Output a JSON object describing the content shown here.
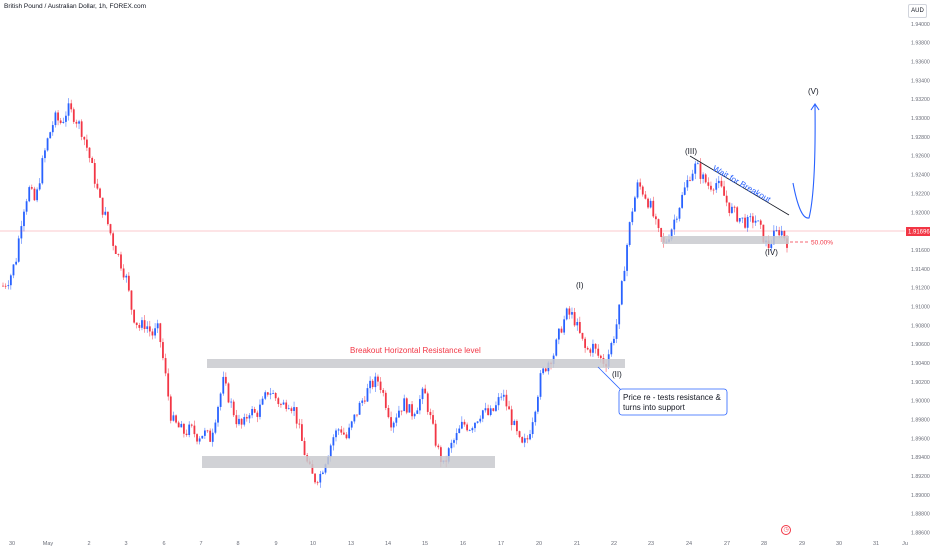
{
  "header": {
    "symbol_title": "British Pound / Australian Dollar, 1h, FOREX.com",
    "currency": "AUD"
  },
  "icons": {
    "time_icon": "clock-icon"
  },
  "colors": {
    "bull": "#2962ff",
    "bear": "#f23645",
    "zone": "#c9cacf",
    "wave_text": "#131722",
    "accent_blue": "#2962ff",
    "accent_red": "#f23645"
  },
  "annotations": {
    "resistance_label": "Breakout Horizontal Resistance level",
    "retest_label_line1": "Price re - tests resistance &",
    "retest_label_line2": "turns into support",
    "wait_label": "Wait for Breakout",
    "fib_label": "50.00%",
    "wave_i": "(I)",
    "wave_ii": "(II)",
    "wave_iii": "(III)",
    "wave_iv": "(IV)",
    "wave_v": "(V)"
  },
  "chart_data": {
    "type": "candlestick",
    "title": "British Pound / Australian Dollar, 1h, FOREX.com",
    "y_unit": "AUD",
    "ylim": [
      1.885,
      1.942
    ],
    "yticks": [
      "1.94000",
      "1.93800",
      "1.93600",
      "1.93400",
      "1.93200",
      "1.93000",
      "1.92800",
      "1.92600",
      "1.92400",
      "1.92200",
      "1.92000",
      "1.91800",
      "1.91600",
      "1.91400",
      "1.91200",
      "1.91000",
      "1.90800",
      "1.90600",
      "1.90400",
      "1.90200",
      "1.90000",
      "1.89800",
      "1.89600",
      "1.89400",
      "1.89200",
      "1.89000",
      "1.88800",
      "1.88600"
    ],
    "xticks": [
      "30",
      "May",
      "2",
      "3",
      "6",
      "7",
      "8",
      "9",
      "10",
      "13",
      "14",
      "15",
      "16",
      "17",
      "20",
      "21",
      "22",
      "23",
      "24",
      "27",
      "28",
      "29",
      "30",
      "31",
      "Ju"
    ],
    "last_price": "1.91696",
    "path": [
      [
        "30",
        1.9122
      ],
      [
        "30",
        1.913
      ],
      [
        "30",
        1.915
      ],
      [
        "30",
        1.92
      ],
      [
        "30",
        1.9225
      ],
      [
        "30",
        1.921
      ],
      [
        "May",
        1.925
      ],
      [
        "May",
        1.928
      ],
      [
        "May",
        1.93
      ],
      [
        "May",
        1.9295
      ],
      [
        "May",
        1.931
      ],
      [
        "May",
        1.9302
      ],
      [
        "May",
        1.929
      ],
      [
        "2",
        1.9268
      ],
      [
        "2",
        1.924
      ],
      [
        "2",
        1.921
      ],
      [
        "2",
        1.9192
      ],
      [
        "2",
        1.9168
      ],
      [
        "3",
        1.915
      ],
      [
        "3",
        1.913
      ],
      [
        "3",
        1.9092
      ],
      [
        "3",
        1.9078
      ],
      [
        "3",
        1.9082
      ],
      [
        "3",
        1.907
      ],
      [
        "3",
        1.9076
      ],
      [
        "3",
        1.903
      ],
      [
        "6",
        1.898
      ],
      [
        "6",
        1.8972
      ],
      [
        "6",
        1.8966
      ],
      [
        "6",
        1.897
      ],
      [
        "6",
        1.8962
      ],
      [
        "6",
        1.8966
      ],
      [
        "7",
        1.896
      ],
      [
        "7",
        1.899
      ],
      [
        "7",
        1.902
      ],
      [
        "7",
        1.9
      ],
      [
        "7",
        1.898
      ],
      [
        "8",
        1.8972
      ],
      [
        "8",
        1.899
      ],
      [
        "8",
        1.8985
      ],
      [
        "8",
        1.8996
      ],
      [
        "9",
        1.9012
      ],
      [
        "9",
        1.9004
      ],
      [
        "9",
        1.8994
      ],
      [
        "9",
        1.9
      ],
      [
        "9",
        1.899
      ],
      [
        "10",
        1.896
      ],
      [
        "10",
        1.8932
      ],
      [
        "10",
        1.8916
      ],
      [
        "10",
        1.8922
      ],
      [
        "10",
        1.8942
      ],
      [
        "10",
        1.8962
      ],
      [
        "13",
        1.8972
      ],
      [
        "13",
        1.896
      ],
      [
        "13",
        1.8978
      ],
      [
        "13",
        1.8994
      ],
      [
        "14",
        1.9008
      ],
      [
        "14",
        1.9018
      ],
      [
        "14",
        1.9022
      ],
      [
        "14",
        1.9
      ],
      [
        "14",
        1.8976
      ],
      [
        "15",
        1.899
      ],
      [
        "15",
        1.8998
      ],
      [
        "15",
        1.8986
      ],
      [
        "15",
        1.8996
      ],
      [
        "15",
        1.901
      ],
      [
        "16",
        1.898
      ],
      [
        "16",
        1.895
      ],
      [
        "16",
        1.893
      ],
      [
        "16",
        1.895
      ],
      [
        "16",
        1.8962
      ],
      [
        "17",
        1.8976
      ],
      [
        "17",
        1.8972
      ],
      [
        "17",
        1.898
      ],
      [
        "17",
        1.899
      ],
      [
        "17",
        1.8984
      ],
      [
        "20",
        1.8992
      ],
      [
        "20",
        1.9008
      ],
      [
        "20",
        1.899
      ],
      [
        "20",
        1.897
      ],
      [
        "20",
        1.895
      ],
      [
        "20",
        1.896
      ],
      [
        "20",
        1.899
      ],
      [
        "21",
        1.9025
      ],
      [
        "21",
        1.904
      ],
      [
        "21",
        1.905
      ],
      [
        "21",
        1.9075
      ],
      [
        "21",
        1.9092
      ],
      [
        "21",
        1.909
      ],
      [
        "21",
        1.907
      ],
      [
        "22",
        1.9052
      ],
      [
        "22",
        1.9058
      ],
      [
        "22",
        1.9046
      ],
      [
        "22",
        1.904
      ],
      [
        "22",
        1.9062
      ],
      [
        "22",
        1.909
      ],
      [
        "22",
        1.915
      ],
      [
        "23",
        1.92
      ],
      [
        "23",
        1.923
      ],
      [
        "23",
        1.922
      ],
      [
        "23",
        1.9205
      ],
      [
        "23",
        1.918
      ],
      [
        "23",
        1.9165
      ],
      [
        "23",
        1.918
      ],
      [
        "23",
        1.92
      ],
      [
        "24",
        1.922
      ],
      [
        "24",
        1.924
      ],
      [
        "24",
        1.925
      ],
      [
        "24",
        1.9236
      ],
      [
        "24",
        1.9228
      ],
      [
        "24",
        1.9232
      ],
      [
        "27",
        1.9222
      ],
      [
        "27",
        1.9206
      ],
      [
        "27",
        1.9198
      ],
      [
        "27",
        1.9192
      ],
      [
        "27",
        1.9188
      ],
      [
        "27",
        1.9194
      ],
      [
        "28",
        1.918
      ],
      [
        "28",
        1.9162
      ],
      [
        "28",
        1.9175
      ],
      [
        "28",
        1.9182
      ],
      [
        "28",
        1.9169
      ]
    ]
  }
}
